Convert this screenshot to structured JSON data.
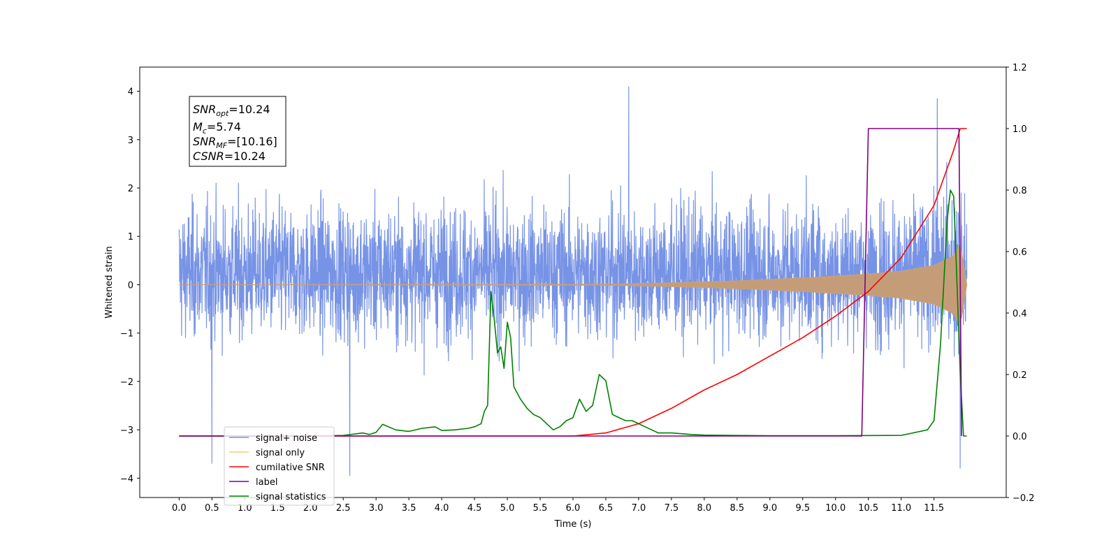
{
  "chart_data": {
    "type": "line",
    "xlabel": "Time (s)",
    "ylabel": "Whitened strain",
    "xlim": [
      -0.6,
      12.6
    ],
    "ylim_left": [
      -4.4,
      4.5
    ],
    "ylim_right": [
      -0.2,
      1.2
    ],
    "x_ticks": [
      "0.0",
      "0.5",
      "1.0",
      "1.5",
      "2.0",
      "2.5",
      "3.0",
      "3.5",
      "4.0",
      "4.5",
      "5.0",
      "5.5",
      "6.0",
      "6.5",
      "7.0",
      "7.5",
      "8.0",
      "8.5",
      "9.0",
      "9.5",
      "10.0",
      "10.5",
      "11.0",
      "11.5"
    ],
    "y_ticks_left": [
      "4",
      "3",
      "2",
      "1",
      "0",
      "−1",
      "−2",
      "−3",
      "−4"
    ],
    "y_ticks_right": [
      "1.2",
      "1.0",
      "0.8",
      "0.6",
      "0.4",
      "0.2",
      "0.0",
      "−0.2"
    ],
    "annotation": {
      "lines": [
        {
          "base": "SNR",
          "sub": "opt",
          "rest": "=10.24"
        },
        {
          "base": "M",
          "sub": "c",
          "rest": "=5.74"
        },
        {
          "base": "SNR",
          "sub": "MF",
          "rest": "=[10.16]"
        },
        {
          "base": "CSNR",
          "sub": "",
          "rest": "=10.24"
        }
      ]
    },
    "legend": {
      "position": "lower-left",
      "entries": [
        {
          "label": "signal+ noise",
          "color": "#7793e6"
        },
        {
          "label": "signal only",
          "color": "#ffc87a"
        },
        {
          "label": "cumilative SNR",
          "color": "#ff0000"
        },
        {
          "label": "label",
          "color": "#800080"
        },
        {
          "label": "signal statistics",
          "color": "#008000"
        }
      ]
    },
    "series": [
      {
        "name": "signal+ noise",
        "axis": "left",
        "color": "#7793e6",
        "noise_duration_s": [
          0.0,
          12.0
        ],
        "typical_range": [
          -2.0,
          2.5
        ],
        "peaks": [
          [
            0.5,
            -3.7
          ],
          [
            2.6,
            -3.95
          ],
          [
            6.85,
            4.1
          ],
          [
            11.55,
            3.85
          ],
          [
            11.9,
            -3.8
          ]
        ]
      },
      {
        "name": "signal only",
        "axis": "left",
        "color": "#ffc87a",
        "envelope_x": [
          0.0,
          6.5,
          7.5,
          8.5,
          9.5,
          10.5,
          11.0,
          11.5,
          11.8,
          11.9,
          12.0
        ],
        "envelope_amplitude": [
          0.0,
          0.01,
          0.04,
          0.08,
          0.14,
          0.22,
          0.28,
          0.4,
          0.6,
          0.85,
          0.0
        ]
      },
      {
        "name": "cumilative SNR",
        "axis": "right",
        "color": "#ff0000",
        "x": [
          0.0,
          6.0,
          6.5,
          7.0,
          7.5,
          8.0,
          8.5,
          9.0,
          9.5,
          10.0,
          10.5,
          11.0,
          11.5,
          11.8,
          11.9,
          12.0
        ],
        "values": [
          0.0,
          0.0,
          0.01,
          0.04,
          0.09,
          0.15,
          0.2,
          0.26,
          0.32,
          0.39,
          0.47,
          0.58,
          0.75,
          0.93,
          1.0,
          1.0
        ]
      },
      {
        "name": "label",
        "axis": "right",
        "color": "#800080",
        "x": [
          0.0,
          10.4,
          10.5,
          11.88,
          11.92
        ],
        "values": [
          0.0,
          0.0,
          1.0,
          1.0,
          0.0
        ]
      },
      {
        "name": "signal statistics",
        "axis": "right",
        "color": "#008000",
        "x": [
          0.0,
          2.0,
          2.5,
          2.8,
          2.9,
          3.0,
          3.1,
          3.3,
          3.5,
          3.7,
          3.9,
          4.0,
          4.2,
          4.4,
          4.5,
          4.6,
          4.65,
          4.7,
          4.75,
          4.8,
          4.85,
          4.9,
          4.95,
          5.0,
          5.05,
          5.1,
          5.2,
          5.3,
          5.4,
          5.5,
          5.6,
          5.7,
          5.8,
          5.9,
          6.0,
          6.1,
          6.2,
          6.3,
          6.4,
          6.5,
          6.6,
          6.7,
          6.8,
          6.9,
          7.0,
          7.1,
          7.2,
          7.3,
          7.5,
          7.8,
          8.0,
          8.5,
          9.0,
          10.0,
          11.0,
          11.4,
          11.5,
          11.6,
          11.7,
          11.75,
          11.8,
          11.85,
          11.9,
          11.95,
          12.0
        ],
        "values": [
          0.0,
          0.0,
          0.002,
          0.01,
          0.005,
          0.012,
          0.038,
          0.02,
          0.015,
          0.025,
          0.03,
          0.018,
          0.02,
          0.025,
          0.03,
          0.04,
          0.08,
          0.1,
          0.47,
          0.38,
          0.27,
          0.29,
          0.22,
          0.37,
          0.32,
          0.16,
          0.12,
          0.09,
          0.07,
          0.06,
          0.04,
          0.02,
          0.03,
          0.05,
          0.06,
          0.12,
          0.08,
          0.1,
          0.2,
          0.18,
          0.07,
          0.06,
          0.05,
          0.05,
          0.04,
          0.03,
          0.02,
          0.01,
          0.01,
          0.005,
          0.003,
          0.002,
          0.001,
          0.001,
          0.002,
          0.02,
          0.05,
          0.3,
          0.7,
          0.8,
          0.78,
          0.5,
          0.2,
          0.0,
          0.0
        ]
      }
    ]
  }
}
